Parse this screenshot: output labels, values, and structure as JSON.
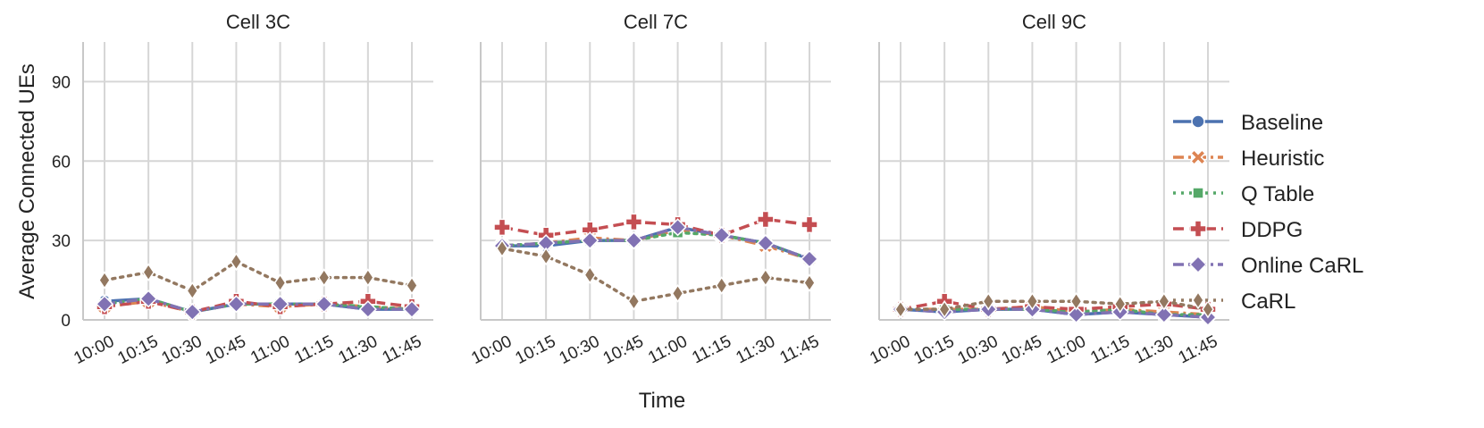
{
  "chart_data": {
    "type": "line",
    "ylabel": "Average Connected UEs",
    "xlabel": "Time",
    "ylim": [
      0,
      105
    ],
    "yticks": [
      0,
      30,
      60,
      90
    ],
    "categories": [
      "10:00",
      "10:15",
      "10:30",
      "10:45",
      "11:00",
      "11:15",
      "11:30",
      "11:45"
    ],
    "legend_position": "right",
    "grid": true,
    "series_styles": [
      {
        "name": "Baseline",
        "color": "#4c72b0",
        "marker": "circle",
        "dash": "solid"
      },
      {
        "name": "Heuristic",
        "color": "#dd8452",
        "marker": "x",
        "dash": "dashdot"
      },
      {
        "name": "Q Table",
        "color": "#55a868",
        "marker": "square",
        "dash": "dotted"
      },
      {
        "name": "DDPG",
        "color": "#c44e52",
        "marker": "plus",
        "dash": "dashed"
      },
      {
        "name": "Online CaRL",
        "color": "#8172b3",
        "marker": "diamond",
        "dash": "dashdot"
      },
      {
        "name": "CaRL",
        "color": "#937860",
        "marker": "thin_diamond",
        "dash": "dotted"
      }
    ],
    "panels": [
      {
        "title": "Cell 3C",
        "series": [
          {
            "name": "Baseline",
            "values": [
              7,
              8,
              3,
              6,
              6,
              6,
              4,
              4
            ]
          },
          {
            "name": "Heuristic",
            "values": [
              5,
              7,
              3,
              6,
              5,
              6,
              5,
              4
            ]
          },
          {
            "name": "Q Table",
            "values": [
              6,
              8,
              3,
              6,
              6,
              6,
              5,
              4
            ]
          },
          {
            "name": "DDPG",
            "values": [
              5,
              7,
              3,
              7,
              5,
              6,
              7,
              5
            ]
          },
          {
            "name": "Online CaRL",
            "values": [
              6,
              8,
              3,
              6,
              6,
              6,
              4,
              4
            ]
          },
          {
            "name": "CaRL",
            "values": [
              15,
              18,
              11,
              22,
              14,
              16,
              16,
              13
            ]
          }
        ]
      },
      {
        "title": "Cell 7C",
        "series": [
          {
            "name": "Baseline",
            "values": [
              28,
              28,
              30,
              30,
              35,
              32,
              29,
              23
            ]
          },
          {
            "name": "Heuristic",
            "values": [
              28,
              29,
              31,
              30,
              34,
              32,
              28,
              23
            ]
          },
          {
            "name": "Q Table",
            "values": [
              28,
              29,
              30,
              30,
              33,
              32,
              29,
              23
            ]
          },
          {
            "name": "DDPG",
            "values": [
              35,
              32,
              34,
              37,
              36,
              32,
              38,
              36
            ]
          },
          {
            "name": "Online CaRL",
            "values": [
              28,
              29,
              30,
              30,
              35,
              32,
              29,
              23
            ]
          },
          {
            "name": "CaRL",
            "values": [
              27,
              24,
              17,
              7,
              10,
              13,
              16,
              14
            ]
          }
        ]
      },
      {
        "title": "Cell 9C",
        "series": [
          {
            "name": "Baseline",
            "values": [
              4,
              3,
              4,
              4,
              2,
              3,
              2,
              1
            ]
          },
          {
            "name": "Heuristic",
            "values": [
              4,
              4,
              4,
              5,
              3,
              4,
              3,
              2
            ]
          },
          {
            "name": "Q Table",
            "values": [
              4,
              4,
              4,
              4,
              3,
              4,
              2,
              2
            ]
          },
          {
            "name": "DDPG",
            "values": [
              4,
              7,
              4,
              5,
              4,
              5,
              6,
              4
            ]
          },
          {
            "name": "Online CaRL",
            "values": [
              4,
              3,
              4,
              4,
              2,
              3,
              2,
              1
            ]
          },
          {
            "name": "CaRL",
            "values": [
              4,
              4,
              7,
              7,
              7,
              6,
              7,
              4
            ]
          }
        ]
      }
    ]
  }
}
